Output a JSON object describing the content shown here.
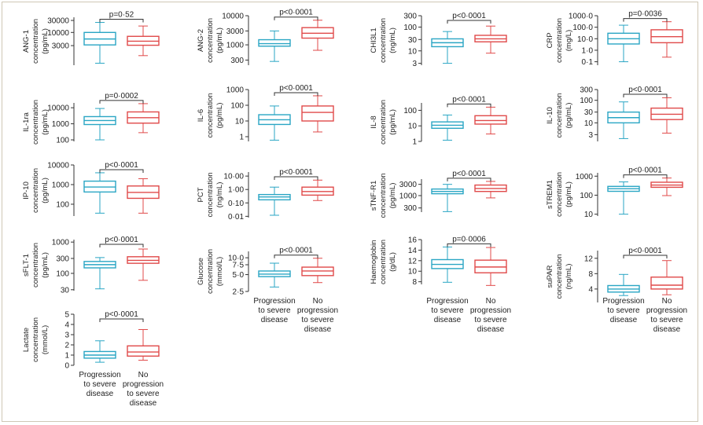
{
  "colors": {
    "progression": "#2aa6c4",
    "no_progression": "#e04a4a",
    "axis": "#333333",
    "border": "#cfc7b5"
  },
  "groups": [
    "Progression to severe disease",
    "No progression to severe disease"
  ],
  "chart_data": [
    {
      "type": "box",
      "title": "ANG-1",
      "ylabel": "concentration",
      "unit": "(pg/mL)",
      "scale": "log",
      "ylim": [
        500,
        40000
      ],
      "ticks": [
        3000,
        10000,
        30000
      ],
      "tick_labels": [
        "3000",
        "10000",
        "30000"
      ],
      "pvalue": "p=0·52",
      "series": [
        {
          "name": "Progression to severe disease",
          "whisker_low": 600,
          "q1": 3200,
          "median": 5500,
          "q3": 10000,
          "whisker_high": 25000
        },
        {
          "name": "No progression to severe disease",
          "whisker_low": 1200,
          "q1": 3100,
          "median": 4500,
          "q3": 7000,
          "whisker_high": 18000
        }
      ]
    },
    {
      "type": "box",
      "title": "ANG-2",
      "ylabel": "concentration",
      "unit": "(pg/mL)",
      "scale": "log",
      "ylim": [
        200,
        10000
      ],
      "ticks": [
        300,
        1000,
        3000,
        10000
      ],
      "tick_labels": [
        "300",
        "1000",
        "3000",
        "10000"
      ],
      "pvalue": "p<0·0001",
      "series": [
        {
          "name": "Progression to severe disease",
          "whisker_low": 270,
          "q1": 900,
          "median": 1100,
          "q3": 1500,
          "whisker_high": 3000
        },
        {
          "name": "No progression to severe disease",
          "whisker_low": 650,
          "q1": 1700,
          "median": 2500,
          "q3": 3900,
          "whisker_high": 7000
        }
      ]
    },
    {
      "type": "box",
      "title": "CHI3L1",
      "ylabel": "concentration",
      "unit": "(ng/mL)",
      "scale": "log",
      "ylim": [
        2.5,
        300
      ],
      "ticks": [
        3,
        10,
        30,
        100,
        300
      ],
      "tick_labels": [
        "3",
        "10",
        "30",
        "100",
        "300"
      ],
      "pvalue": "p<0·0001",
      "series": [
        {
          "name": "Progression to severe disease",
          "whisker_low": 3,
          "q1": 15,
          "median": 22,
          "q3": 32,
          "whisker_high": 65
        },
        {
          "name": "No progression to severe disease",
          "whisker_low": 8,
          "q1": 24,
          "median": 32,
          "q3": 45,
          "whisker_high": 110
        }
      ]
    },
    {
      "type": "box",
      "title": "CRP",
      "ylabel": "concentration",
      "unit": "(mg/L)",
      "scale": "log",
      "ylim": [
        0.05,
        1000
      ],
      "ticks": [
        0.1,
        1,
        10,
        100,
        1000
      ],
      "tick_labels": [
        "0·1",
        "1·0",
        "10·0",
        "100·0",
        "1000·0"
      ],
      "pvalue": "p=0·0036",
      "series": [
        {
          "name": "Progression to severe disease",
          "whisker_low": 0.1,
          "q1": 3.5,
          "median": 10,
          "q3": 30,
          "whisker_high": 150
        },
        {
          "name": "No progression to severe disease",
          "whisker_low": 0.25,
          "q1": 4.5,
          "median": 15,
          "q3": 60,
          "whisker_high": 300
        }
      ]
    },
    {
      "type": "box",
      "title": "IL-1ra",
      "ylabel": "concentration",
      "unit": "(pg/mL)",
      "scale": "log",
      "ylim": [
        80,
        20000
      ],
      "ticks": [
        100,
        1000,
        10000
      ],
      "tick_labels": [
        "100",
        "1000",
        "10000"
      ],
      "pvalue": "p=0·0002",
      "series": [
        {
          "name": "Progression to severe disease",
          "whisker_low": 100,
          "q1": 900,
          "median": 1600,
          "q3": 2800,
          "whisker_high": 9000
        },
        {
          "name": "No progression to severe disease",
          "whisker_low": 280,
          "q1": 1100,
          "median": 2400,
          "q3": 5500,
          "whisker_high": 18000
        }
      ]
    },
    {
      "type": "box",
      "title": "IL-6",
      "ylabel": "concentration",
      "unit": "(pg/mL)",
      "scale": "log",
      "ylim": [
        0.5,
        1000
      ],
      "ticks": [
        1,
        10,
        100,
        1000
      ],
      "tick_labels": [
        "1",
        "10",
        "100",
        "1000"
      ],
      "pvalue": "p<0·0001",
      "series": [
        {
          "name": "Progression to severe disease",
          "whisker_low": 0.6,
          "q1": 6,
          "median": 12,
          "q3": 25,
          "whisker_high": 90
        },
        {
          "name": "No progression to severe disease",
          "whisker_low": 2,
          "q1": 10,
          "median": 35,
          "q3": 90,
          "whisker_high": 400
        }
      ]
    },
    {
      "type": "box",
      "title": "IL-8",
      "ylabel": "concentration",
      "unit": "(pg/mL)",
      "scale": "log",
      "ylim": [
        1,
        300
      ],
      "ticks": [
        1,
        10,
        100
      ],
      "tick_labels": [
        "1",
        "10",
        "100"
      ],
      "pvalue": "p<0·0001",
      "series": [
        {
          "name": "Progression to severe disease",
          "whisker_low": 1.2,
          "q1": 7,
          "median": 11,
          "q3": 18,
          "whisker_high": 50
        },
        {
          "name": "No progression to severe disease",
          "whisker_low": 3,
          "q1": 13,
          "median": 22,
          "q3": 45,
          "whisker_high": 160
        }
      ]
    },
    {
      "type": "box",
      "title": "IL-10",
      "ylabel": "concentration",
      "unit": "(pg/mL)",
      "scale": "log",
      "ylim": [
        1.5,
        300
      ],
      "ticks": [
        3,
        10,
        30,
        100,
        300
      ],
      "tick_labels": [
        "3",
        "10",
        "30",
        "100",
        "300"
      ],
      "pvalue": "p<0·0001",
      "series": [
        {
          "name": "Progression to severe disease",
          "whisker_low": 2,
          "q1": 10,
          "median": 17,
          "q3": 30,
          "whisker_high": 85
        },
        {
          "name": "No progression to severe disease",
          "whisker_low": 3.5,
          "q1": 14,
          "median": 24,
          "q3": 45,
          "whisker_high": 130
        }
      ]
    },
    {
      "type": "box",
      "title": "IP-10",
      "ylabel": "concentration",
      "unit": "(pg/mL)",
      "scale": "log",
      "ylim": [
        25,
        10000
      ],
      "ticks": [
        100,
        1000,
        10000
      ],
      "tick_labels": [
        "100",
        "1000",
        "10000"
      ],
      "pvalue": "p<0·0001",
      "series": [
        {
          "name": "Progression to severe disease",
          "whisker_low": 35,
          "q1": 420,
          "median": 750,
          "q3": 1500,
          "whisker_high": 4000
        },
        {
          "name": "No progression to severe disease",
          "whisker_low": 35,
          "q1": 200,
          "median": 400,
          "q3": 850,
          "whisker_high": 2000
        }
      ]
    },
    {
      "type": "box",
      "title": "PCT",
      "ylabel": "concentration",
      "unit": "(ng/mL)",
      "scale": "log",
      "ylim": [
        0.008,
        20
      ],
      "ticks": [
        0.01,
        0.1,
        1,
        10
      ],
      "tick_labels": [
        "0·01",
        "0·10",
        "1·00",
        "10·00"
      ],
      "pvalue": "p<0·0001",
      "series": [
        {
          "name": "Progression to severe disease",
          "whisker_low": 0.012,
          "q1": 0.17,
          "median": 0.28,
          "q3": 0.42,
          "whisker_high": 1.5
        },
        {
          "name": "No progression to severe disease",
          "whisker_low": 0.15,
          "q1": 0.38,
          "median": 0.7,
          "q3": 1.5,
          "whisker_high": 5
        }
      ]
    },
    {
      "type": "box",
      "title": "sTNF-R1",
      "ylabel": "concentration",
      "unit": "(pg/mL)",
      "scale": "log",
      "ylim": [
        200,
        5000
      ],
      "ticks": [
        300,
        1000,
        3000
      ],
      "tick_labels": [
        "300",
        "1000",
        "3000"
      ],
      "pvalue": "p<0·0001",
      "series": [
        {
          "name": "Progression to severe disease",
          "whisker_low": 210,
          "q1": 1200,
          "median": 1500,
          "q3": 1900,
          "whisker_high": 3000
        },
        {
          "name": "No progression to severe disease",
          "whisker_low": 800,
          "q1": 1500,
          "median": 2000,
          "q3": 2800,
          "whisker_high": 4000
        }
      ]
    },
    {
      "type": "box",
      "title": "sTREM1",
      "ylabel": "concentration",
      "unit": "(pg/mL)",
      "scale": "log",
      "ylim": [
        8,
        1500
      ],
      "ticks": [
        10,
        100,
        1000
      ],
      "tick_labels": [
        "10",
        "100",
        "1000"
      ],
      "pvalue": "p<0·0001",
      "series": [
        {
          "name": "Progression to severe disease",
          "whisker_low": 10,
          "q1": 160,
          "median": 220,
          "q3": 290,
          "whisker_high": 500
        },
        {
          "name": "No progression to severe disease",
          "whisker_low": 95,
          "q1": 260,
          "median": 340,
          "q3": 480,
          "whisker_high": 800
        }
      ]
    },
    {
      "type": "box",
      "title": "sFLT-1",
      "ylabel": "concentration",
      "unit": "(pg/mL)",
      "scale": "log",
      "ylim": [
        28,
        1200
      ],
      "ticks": [
        30,
        100,
        300,
        1000
      ],
      "tick_labels": [
        "30",
        "100",
        "300",
        "1000"
      ],
      "pvalue": "p<0·0001",
      "series": [
        {
          "name": "Progression to severe disease",
          "whisker_low": 32,
          "q1": 150,
          "median": 190,
          "q3": 240,
          "whisker_high": 320
        },
        {
          "name": "No progression to severe disease",
          "whisker_low": 60,
          "q1": 210,
          "median": 260,
          "q3": 340,
          "whisker_high": 600
        }
      ]
    },
    {
      "type": "box",
      "title": "Glucose",
      "ylabel": "concentration",
      "unit": "(mmol/L)",
      "scale": "log",
      "ylim": [
        2.5,
        13
      ],
      "ticks": [
        2.5,
        5,
        7.5,
        10
      ],
      "tick_labels": [
        "2·5",
        "5·0",
        "7·5",
        "10·0"
      ],
      "pvalue": "p<0·0001",
      "series": [
        {
          "name": "Progression to severe disease",
          "whisker_low": 3,
          "q1": 4.6,
          "median": 5.1,
          "q3": 5.8,
          "whisker_high": 8
        },
        {
          "name": "No progression to severe disease",
          "whisker_low": 3.6,
          "q1": 4.8,
          "median": 5.8,
          "q3": 6.8,
          "whisker_high": 9.8
        }
      ]
    },
    {
      "type": "box",
      "title": "Haemoglobin",
      "ylabel": "concentration",
      "unit": "(g/dL)",
      "scale": "linear",
      "ylim": [
        7.5,
        16
      ],
      "ticks": [
        8,
        10,
        12,
        14,
        16
      ],
      "tick_labels": [
        "8",
        "10",
        "12",
        "14",
        "16"
      ],
      "pvalue": "p=0·0006",
      "series": [
        {
          "name": "Progression to severe disease",
          "whisker_low": 7.9,
          "q1": 10.5,
          "median": 11.3,
          "q3": 12.2,
          "whisker_high": 14.6
        },
        {
          "name": "No progression to severe disease",
          "whisker_low": 7.3,
          "q1": 9.7,
          "median": 10.8,
          "q3": 12.1,
          "whisker_high": 14.5
        }
      ]
    },
    {
      "type": "box",
      "title": "suPAR",
      "ylabel": "concentration",
      "unit": "(ng/mL)",
      "scale": "linear",
      "ylim": [
        0.5,
        14
      ],
      "ticks": [
        4,
        8,
        12
      ],
      "tick_labels": [
        "4",
        "8",
        "12"
      ],
      "pvalue": "p<0·0001",
      "series": [
        {
          "name": "Progression to severe disease",
          "whisker_low": 2.3,
          "q1": 3.2,
          "median": 4,
          "q3": 4.9,
          "whisker_high": 7.8
        },
        {
          "name": "No progression to severe disease",
          "whisker_low": 2.5,
          "q1": 4,
          "median": 5,
          "q3": 7.1,
          "whisker_high": 11.4
        }
      ]
    },
    {
      "type": "box",
      "title": "Lactate",
      "ylabel": "concentration",
      "unit": "(mmol/L)",
      "scale": "linear",
      "ylim": [
        0,
        5
      ],
      "ticks": [
        0,
        1,
        2,
        3,
        4,
        5
      ],
      "tick_labels": [
        "0",
        "1",
        "2",
        "3",
        "4",
        "5"
      ],
      "pvalue": "p<0·0001",
      "series": [
        {
          "name": "Progression to severe disease",
          "whisker_low": 0.3,
          "q1": 0.7,
          "median": 1,
          "q3": 1.35,
          "whisker_high": 2.4
        },
        {
          "name": "No progression to severe disease",
          "whisker_low": 0.5,
          "q1": 0.9,
          "median": 1.3,
          "q3": 1.9,
          "whisker_high": 3.5
        }
      ]
    }
  ]
}
